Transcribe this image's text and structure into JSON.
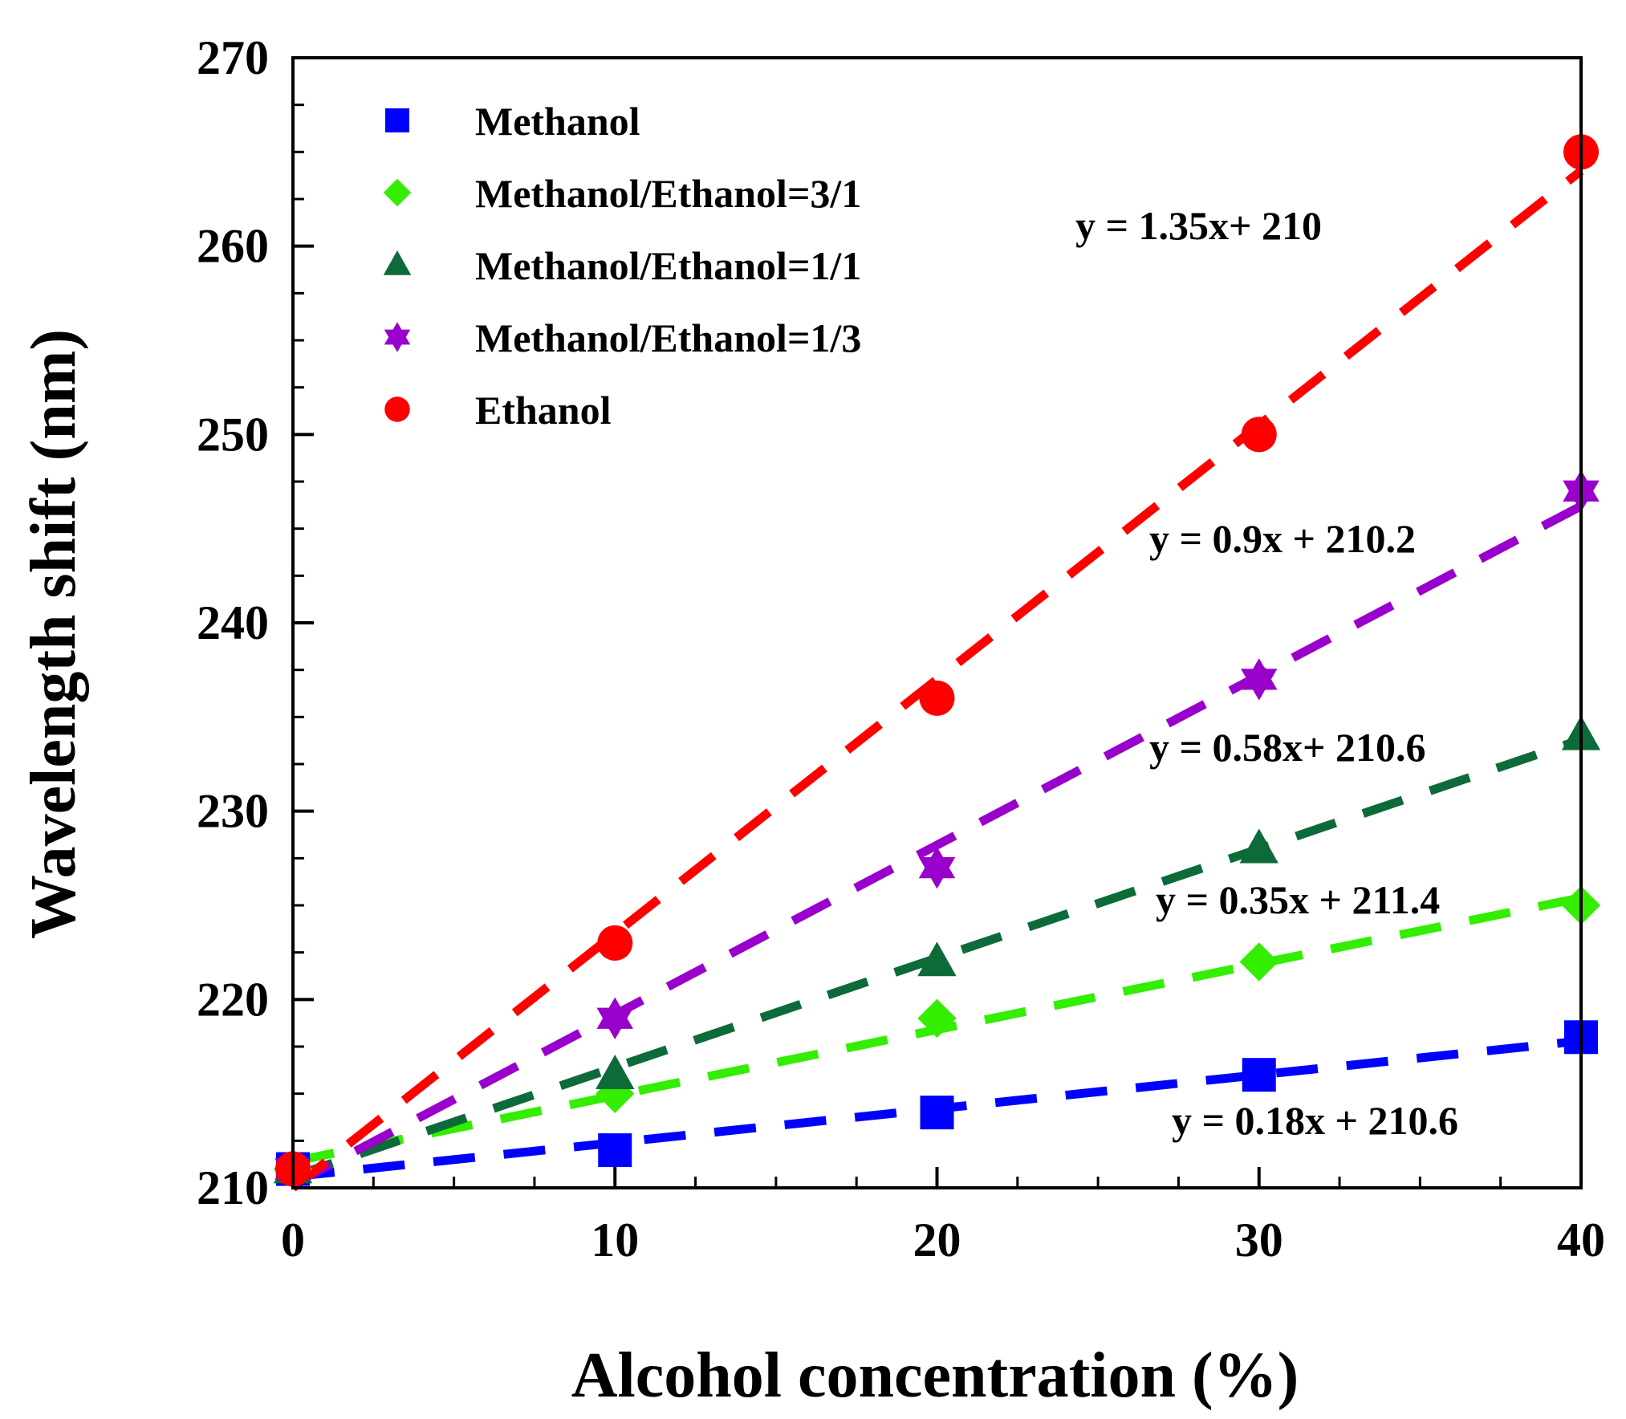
{
  "chart_data": {
    "type": "scatter",
    "title": "",
    "xlabel": "Alcohol concentration  (%)",
    "ylabel": "Wavelength shift  (nm)",
    "xlim": [
      0,
      40
    ],
    "ylim": [
      210,
      270
    ],
    "xticks": [
      0,
      10,
      20,
      30,
      40
    ],
    "yticks": [
      210,
      220,
      230,
      240,
      250,
      260,
      270
    ],
    "grid": false,
    "legend_position": "top-left",
    "series": [
      {
        "name": "Methanol",
        "color": "#0000ff",
        "marker": "square",
        "x": [
          0,
          10,
          20,
          30,
          40
        ],
        "y": [
          211,
          212,
          214,
          216,
          218
        ],
        "fit": {
          "slope": 0.18,
          "intercept": 210.6,
          "equation": "y = 0.18x + 210.6"
        }
      },
      {
        "name": "Methanol/Ethanol=3/1",
        "color": "#33ee00",
        "marker": "diamond",
        "x": [
          0,
          10,
          20,
          30,
          40
        ],
        "y": [
          211,
          215,
          219,
          222,
          225
        ],
        "fit": {
          "slope": 0.35,
          "intercept": 211.4,
          "equation": "y = 0.35x + 211.4"
        }
      },
      {
        "name": "Methanol/Ethanol=1/1",
        "color": "#0d6b3a",
        "marker": "triangle",
        "x": [
          0,
          10,
          20,
          30,
          40
        ],
        "y": [
          211,
          216,
          222,
          228,
          234
        ],
        "fit": {
          "slope": 0.58,
          "intercept": 210.6,
          "equation": "y = 0.58x+ 210.6"
        }
      },
      {
        "name": "Methanol/Ethanol=1/3",
        "color": "#9900cc",
        "marker": "star",
        "x": [
          0,
          10,
          20,
          30,
          40
        ],
        "y": [
          211,
          219,
          227,
          237,
          247
        ],
        "fit": {
          "slope": 0.9,
          "intercept": 210.2,
          "equation": "y = 0.9x + 210.2"
        }
      },
      {
        "name": "Ethanol",
        "color": "#ff0000",
        "marker": "circle",
        "x": [
          0,
          10,
          20,
          30,
          40
        ],
        "y": [
          211,
          223,
          236,
          250,
          265
        ],
        "fit": {
          "slope": 1.35,
          "intercept": 210,
          "equation": "y = 1.35x+ 210"
        }
      }
    ]
  }
}
